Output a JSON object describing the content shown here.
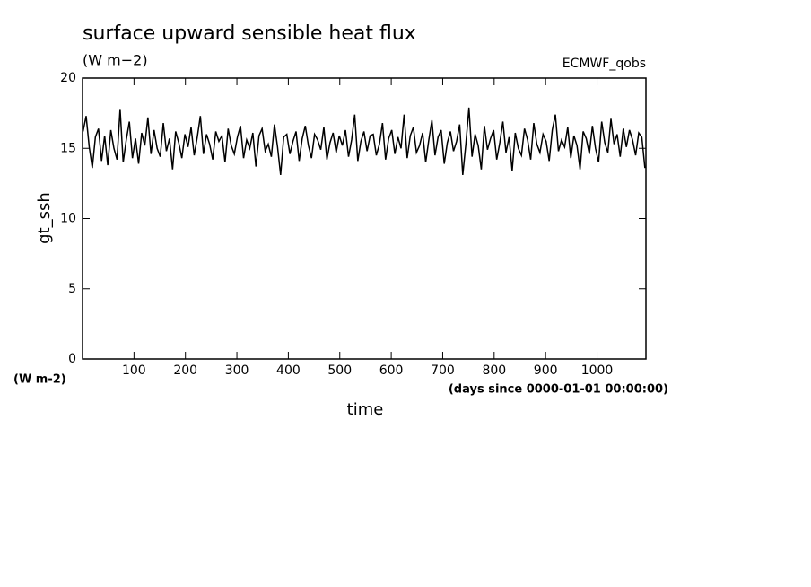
{
  "chart_data": {
    "type": "line",
    "title": "surface upward sensible heat flux",
    "subtitle": "(W m−2)",
    "annotation": "ECMWF_qobs",
    "y_label": "gt_ssh",
    "y_units": "(W m-2)",
    "x_units": "(days since 0000-01-01 00:00:00)",
    "x_label": "time",
    "xlim": [
      0,
      1095
    ],
    "ylim": [
      0,
      20
    ],
    "xticks": [
      100,
      200,
      300,
      400,
      500,
      600,
      700,
      800,
      900,
      1000
    ],
    "yticks": [
      0,
      5,
      10,
      15,
      20
    ],
    "x": [
      1,
      7,
      13,
      19,
      25,
      31,
      37,
      43,
      49,
      55,
      61,
      67,
      73,
      79,
      85,
      91,
      97,
      103,
      109,
      115,
      121,
      127,
      133,
      139,
      145,
      151,
      157,
      163,
      169,
      175,
      181,
      187,
      193,
      199,
      205,
      211,
      217,
      223,
      229,
      235,
      241,
      247,
      253,
      259,
      265,
      271,
      277,
      283,
      289,
      295,
      301,
      307,
      313,
      319,
      325,
      331,
      337,
      343,
      349,
      355,
      361,
      367,
      373,
      379,
      385,
      391,
      397,
      403,
      409,
      415,
      421,
      427,
      433,
      439,
      445,
      451,
      457,
      463,
      469,
      475,
      481,
      487,
      493,
      499,
      505,
      511,
      517,
      523,
      529,
      535,
      541,
      547,
      553,
      559,
      565,
      571,
      577,
      583,
      589,
      595,
      601,
      607,
      613,
      619,
      625,
      631,
      637,
      643,
      649,
      655,
      661,
      667,
      673,
      679,
      685,
      691,
      697,
      703,
      709,
      715,
      721,
      727,
      733,
      739,
      745,
      751,
      757,
      763,
      769,
      775,
      781,
      787,
      793,
      799,
      805,
      811,
      817,
      823,
      829,
      835,
      841,
      847,
      853,
      859,
      865,
      871,
      877,
      883,
      889,
      895,
      901,
      907,
      913,
      919,
      925,
      931,
      937,
      943,
      949,
      955,
      961,
      967,
      973,
      979,
      985,
      991,
      997,
      1003,
      1009,
      1015,
      1021,
      1027,
      1033,
      1039,
      1045,
      1051,
      1057,
      1063,
      1069,
      1075,
      1081,
      1087,
      1093
    ],
    "series": [
      {
        "color": "#000000",
        "values": [
          16.2,
          17.3,
          15.1,
          13.6,
          15.8,
          16.4,
          14.1,
          15.9,
          13.8,
          16.3,
          15.0,
          14.2,
          17.8,
          14.0,
          15.6,
          16.9,
          14.3,
          15.7,
          13.9,
          16.1,
          15.2,
          17.2,
          14.6,
          16.3,
          15.0,
          14.4,
          16.8,
          14.8,
          15.7,
          13.5,
          16.2,
          15.4,
          14.3,
          16.0,
          15.1,
          16.5,
          14.5,
          15.8,
          17.3,
          14.6,
          16.0,
          15.3,
          14.2,
          16.2,
          15.5,
          15.9,
          14.0,
          16.4,
          15.2,
          14.6,
          15.8,
          16.6,
          14.3,
          15.6,
          15.0,
          16.1,
          13.7,
          15.9,
          16.4,
          14.8,
          15.3,
          14.4,
          16.7,
          15.1,
          13.1,
          15.8,
          16.0,
          14.6,
          15.5,
          16.2,
          14.1,
          15.7,
          16.6,
          15.2,
          14.3,
          16.0,
          15.6,
          14.9,
          16.5,
          14.2,
          15.4,
          16.1,
          14.7,
          15.9,
          15.2,
          16.3,
          14.4,
          15.6,
          17.4,
          14.1,
          15.5,
          16.2,
          14.8,
          15.9,
          16.0,
          14.5,
          15.3,
          16.8,
          14.2,
          15.7,
          16.3,
          14.6,
          15.8,
          15.0,
          17.4,
          14.3,
          15.9,
          16.5,
          14.7,
          15.2,
          16.1,
          14.0,
          15.6,
          17.0,
          14.5,
          15.8,
          16.3,
          13.9,
          15.4,
          16.2,
          14.8,
          15.5,
          16.7,
          13.1,
          15.3,
          17.9,
          14.4,
          16.0,
          15.2,
          13.5,
          16.6,
          14.9,
          15.7,
          16.3,
          14.2,
          15.4,
          16.9,
          14.7,
          15.8,
          13.4,
          16.1,
          15.0,
          14.5,
          16.4,
          15.6,
          14.2,
          16.8,
          15.3,
          14.7,
          16.0,
          15.5,
          14.1,
          16.3,
          17.4,
          14.8,
          15.6,
          15.1,
          16.5,
          14.3,
          15.9,
          15.2,
          13.5,
          16.2,
          15.7,
          14.6,
          16.6,
          15.0,
          14.0,
          16.9,
          15.4,
          14.7,
          17.1,
          15.3,
          16.0,
          14.4,
          16.4,
          15.1,
          16.3,
          15.6,
          14.5,
          16.1,
          15.8,
          13.6
        ]
      }
    ]
  }
}
